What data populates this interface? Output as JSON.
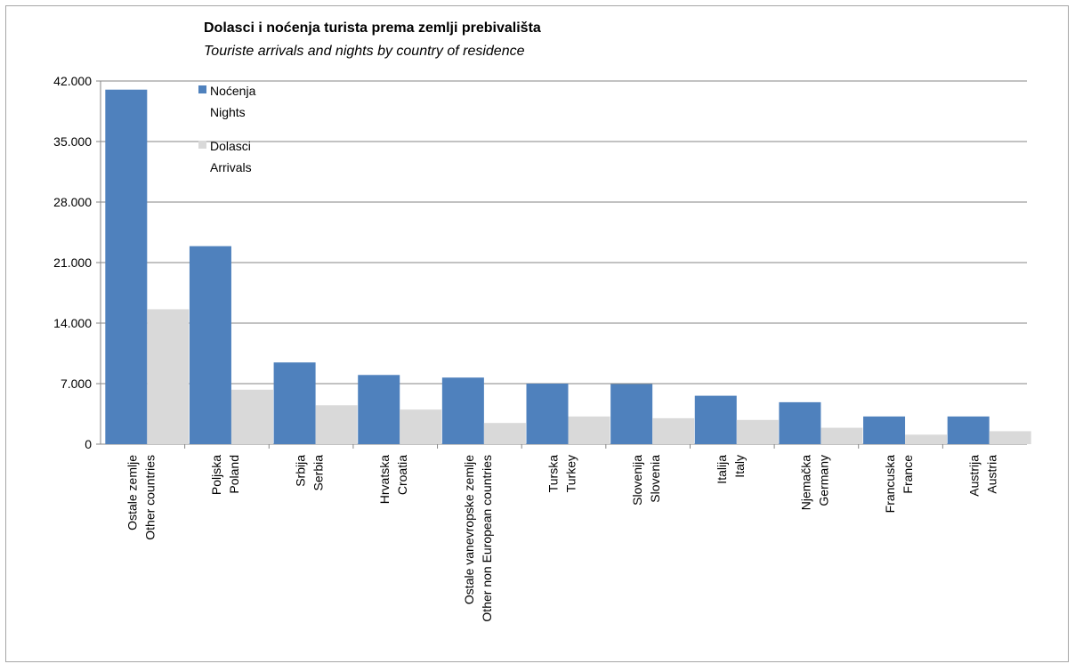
{
  "chart_data": {
    "type": "bar",
    "title": "Dolasci i noćenja turista prema zemlji prebivališta",
    "subtitle": "Touriste arrivals and nights by country of residence",
    "categories": [
      [
        "Ostale zemlje",
        "Other countries"
      ],
      [
        "Poljska",
        "Poland"
      ],
      [
        "Srbija",
        "Serbia"
      ],
      [
        "Hrvatska",
        "Croatia"
      ],
      [
        "Ostale vanevropske zemlje",
        "Other non European countries"
      ],
      [
        "Turska",
        "Turkey"
      ],
      [
        "Slovenija",
        "Slovenia"
      ],
      [
        "Italija",
        "Italy"
      ],
      [
        "Njemačka",
        "Germany"
      ],
      [
        "Francuska",
        "France"
      ],
      [
        "Austrija",
        "Austria"
      ]
    ],
    "series": [
      {
        "name": [
          "Noćenja",
          "Nights"
        ],
        "color": "#4f81bd",
        "values": [
          41000,
          22900,
          9450,
          8000,
          7700,
          7000,
          6950,
          5600,
          4850,
          3200,
          3200
        ]
      },
      {
        "name": [
          "Dolasci",
          "Arrivals"
        ],
        "color": "#d9d9d9",
        "values": [
          15600,
          6300,
          4500,
          4000,
          2450,
          3200,
          3000,
          2800,
          1900,
          1100,
          1500
        ]
      }
    ],
    "ylim": [
      0,
      42000
    ],
    "yticks": [
      "0",
      "7.000",
      "14.000",
      "21.000",
      "28.000",
      "35.000",
      "42.000"
    ],
    "ytick_values": [
      0,
      7000,
      14000,
      21000,
      28000,
      35000,
      42000
    ],
    "grid": true,
    "legend": "top-left"
  }
}
